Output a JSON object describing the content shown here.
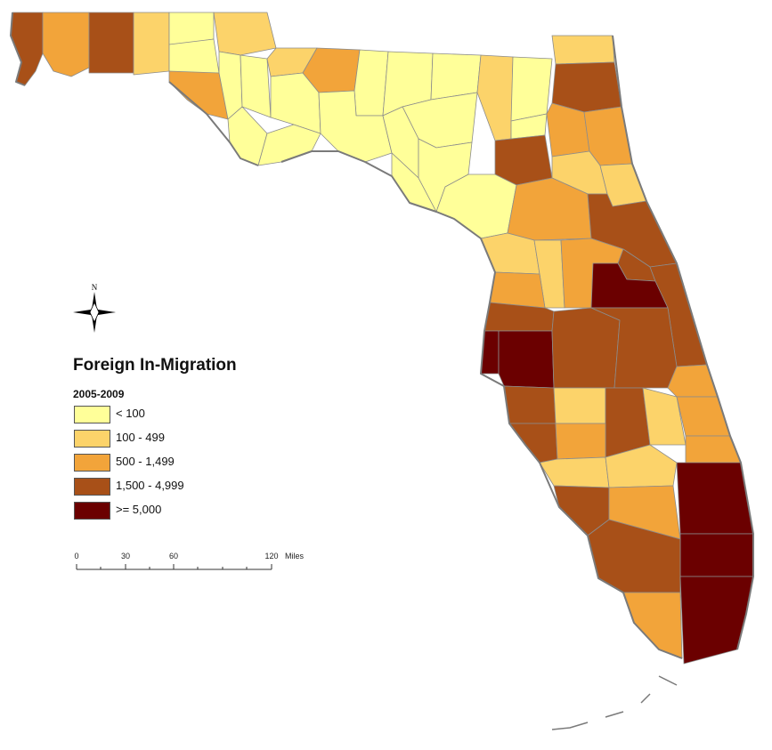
{
  "legend": {
    "title": "Foreign In-Migration",
    "subtitle": "2005-2009",
    "classes": [
      {
        "label": "< 100",
        "color": "#ffff99"
      },
      {
        "label": "100 - 499",
        "color": "#fcd36a"
      },
      {
        "label": "500 - 1,499",
        "color": "#f2a43a"
      },
      {
        "label": "1,500 - 4,999",
        "color": "#a85018"
      },
      {
        "label": ">= 5,000",
        "color": "#6b0000"
      }
    ]
  },
  "compass": {
    "north_label": "N"
  },
  "scalebar": {
    "ticks": [
      "0",
      "30",
      "60",
      "120"
    ],
    "unit": "Miles"
  }
}
